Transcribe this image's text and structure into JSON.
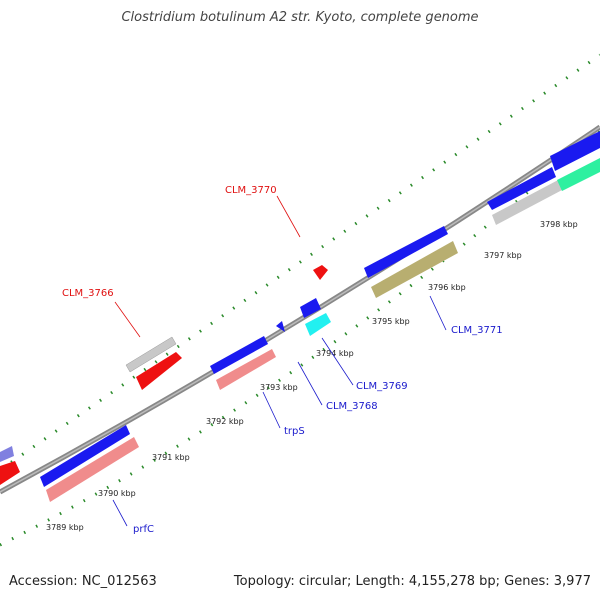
{
  "title": "Clostridium botulinum A2 str. Kyoto, complete genome",
  "footer": {
    "accession": "Accession: NC_012563",
    "summary": "Topology: circular; Length: 4,155,278 bp; Genes: 3,977"
  },
  "ticks": [
    "3789 kbp",
    "3790 kbp",
    "3791 kbp",
    "3792 kbp",
    "3793 kbp",
    "3794 kbp",
    "3795 kbp",
    "3796 kbp",
    "3797 kbp",
    "3798 kbp"
  ],
  "genes": [
    {
      "name": "CLM_3766",
      "color": "#e01010"
    },
    {
      "name": "CLM_3770",
      "color": "#e01010"
    },
    {
      "name": "prfC",
      "color": "#1a1acc"
    },
    {
      "name": "trpS",
      "color": "#1a1acc"
    },
    {
      "name": "CLM_3768",
      "color": "#1a1acc"
    },
    {
      "name": "CLM_3769",
      "color": "#1a1acc"
    },
    {
      "name": "CLM_3771",
      "color": "#1a1acc"
    }
  ],
  "colors": {
    "backbone": "#888888",
    "tick": "#2a8a2a",
    "blue": "#1a1af0",
    "pink": "#f08c8c",
    "red": "#ee1111",
    "gray": "#c8c8c8",
    "olive": "#b8ae70",
    "cyan": "#22f0f0",
    "green": "#2ef0a0",
    "violet": "#8080e0"
  }
}
